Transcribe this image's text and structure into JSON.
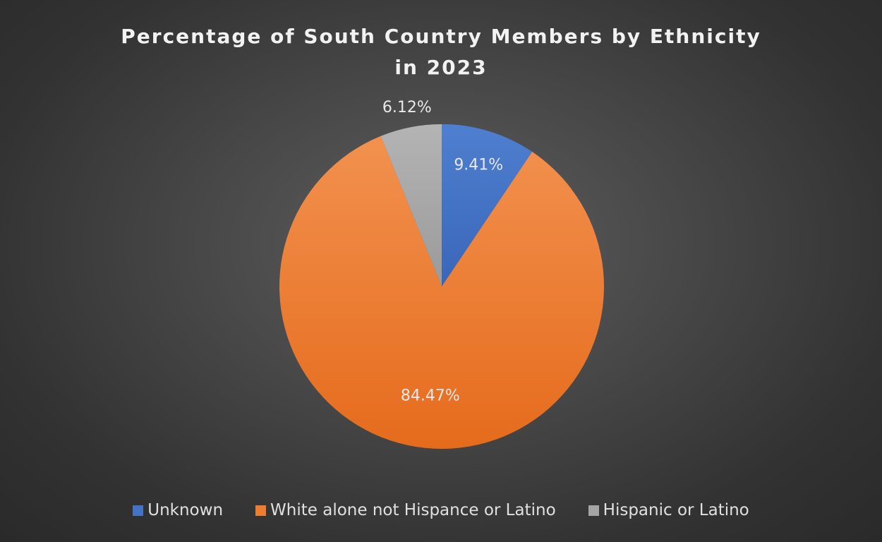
{
  "chart_data": {
    "type": "pie",
    "title": "Percentage of South Country Members by Ethnicity in 2023",
    "categories": [
      "Unknown",
      "White alone not Hispance or Latino",
      "Hispanic or Latino"
    ],
    "values": [
      9.41,
      84.47,
      6.12
    ],
    "data_labels": [
      "9.41%",
      "84.47%",
      "6.12%"
    ],
    "colors": [
      "#4472c4",
      "#ed7d31",
      "#a5a5a5"
    ],
    "legend_position": "bottom",
    "start_angle_deg": 0,
    "direction": "clockwise"
  },
  "legend": {
    "items": [
      {
        "label": "Unknown",
        "color": "#4472c4"
      },
      {
        "label": "White alone not Hispance or Latino",
        "color": "#ed7d31"
      },
      {
        "label": "Hispanic or Latino",
        "color": "#a5a5a5"
      }
    ]
  }
}
